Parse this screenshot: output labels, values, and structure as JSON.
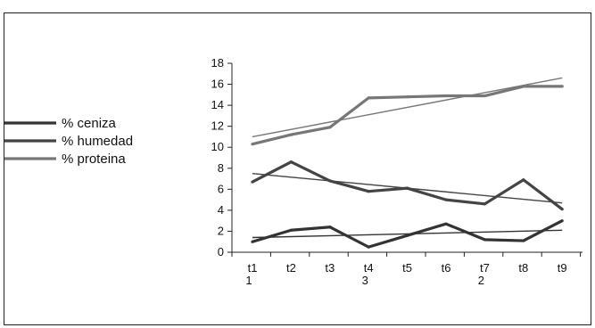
{
  "chart_data": {
    "type": "line",
    "categories": [
      "t1",
      "t2",
      "t3",
      "t4",
      "t5",
      "t6",
      "t7",
      "t8",
      "t9"
    ],
    "category_sublabels": [
      "1",
      "",
      "",
      "3",
      "",
      "",
      "2",
      "",
      ""
    ],
    "ylim": [
      0,
      18
    ],
    "yticks": [
      0,
      2,
      4,
      6,
      8,
      10,
      12,
      14,
      16,
      18
    ],
    "grid": false,
    "legend_placement": "left",
    "series": [
      {
        "name": "% ceniza",
        "color": "#333333",
        "values": [
          1.0,
          2.1,
          2.4,
          0.5,
          1.6,
          2.7,
          1.2,
          1.1,
          3.0
        ],
        "trendline": [
          1.4,
          2.1
        ]
      },
      {
        "name": "% humedad",
        "color": "#444444",
        "values": [
          6.7,
          8.6,
          6.8,
          5.8,
          6.1,
          5.0,
          4.6,
          6.9,
          4.1
        ],
        "trendline": [
          7.5,
          4.7
        ]
      },
      {
        "name": "% proteina",
        "color": "#777777",
        "values": [
          10.3,
          11.2,
          11.9,
          14.7,
          14.8,
          14.9,
          14.9,
          15.8,
          15.8
        ],
        "trendline": [
          11.0,
          16.6
        ]
      }
    ]
  }
}
